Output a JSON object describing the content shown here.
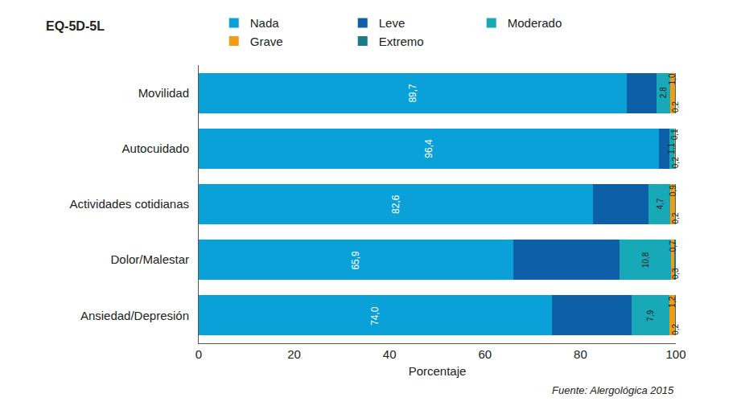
{
  "chart_data": {
    "type": "bar",
    "title": "EQ-5D-5L",
    "orientation": "horizontal",
    "stacked": true,
    "categories": [
      "Movilidad",
      "Autocuidado",
      "Actividades cotidianas",
      "Dolor/Malestar",
      "Ansiedad/Depresión"
    ],
    "series": [
      {
        "name": "Nada",
        "color": "#0aa0d8",
        "values": [
          89.7,
          96.4,
          82.6,
          65.9,
          74.0
        ],
        "value_labels": [
          "89,7",
          "96,4",
          "82,6",
          "65,9",
          "74,0"
        ],
        "data_labels": true
      },
      {
        "name": "Leve",
        "color": "#0d5fa7",
        "values": [
          6.3,
          2.2,
          11.6,
          22.3,
          16.7
        ],
        "data_labels": false
      },
      {
        "name": "Moderado",
        "color": "#17a9b8",
        "values": [
          2.8,
          1.1,
          4.7,
          10.8,
          7.9
        ],
        "value_labels": [
          "2,8",
          "1,1",
          "4,7",
          "10,8",
          "7,9"
        ],
        "data_labels": true
      },
      {
        "name": "Grave",
        "color": "#f39c12",
        "values": [
          1.0,
          0.1,
          0.9,
          0.7,
          1.2
        ],
        "value_labels": [
          "1,0",
          "0,1",
          "0,9",
          "0,7",
          "1,2"
        ],
        "data_labels": true
      },
      {
        "name": "Extremo",
        "color": "#1a7a8c",
        "values": [
          0.2,
          0.2,
          0.2,
          0.3,
          0.2
        ],
        "value_labels": [
          "0,2",
          "0,2",
          "0,2",
          "0,3",
          "0,2"
        ],
        "data_labels": true
      }
    ],
    "xlabel": "Porcentaje",
    "xlim": [
      0,
      100
    ],
    "xticks": [
      0,
      20,
      40,
      60,
      80,
      100
    ],
    "grid": false,
    "legend": "top",
    "annotations": [
      {
        "text": "Fuente: Alergológica 2015"
      }
    ]
  }
}
